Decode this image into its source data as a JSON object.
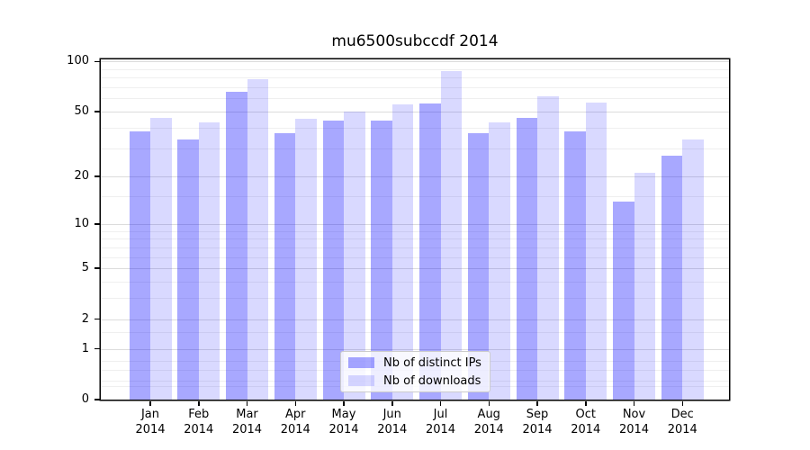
{
  "chart_data": {
    "type": "bar",
    "title": "mu6500subccdf 2014",
    "categories": [
      "Jan",
      "Feb",
      "Mar",
      "Apr",
      "May",
      "Jun",
      "Jul",
      "Aug",
      "Sep",
      "Oct",
      "Nov",
      "Dec"
    ],
    "category_year": "2014",
    "series": [
      {
        "name": "Nb of distinct IPs",
        "color": "rgba(0,0,255,0.34)",
        "values": [
          38,
          34,
          66,
          37,
          44,
          44,
          56,
          37,
          46,
          38,
          14,
          27
        ]
      },
      {
        "name": "Nb of downloads",
        "color": "rgba(0,0,255,0.15)",
        "values": [
          46,
          43,
          78,
          45,
          50,
          55,
          88,
          43,
          62,
          57,
          21,
          34
        ]
      }
    ],
    "y_axis": {
      "scale": "log1p",
      "tick_labels": [
        0,
        1,
        2,
        5,
        10,
        20,
        50,
        100
      ],
      "minor_gridlines": [
        0.2,
        0.3,
        0.5,
        0.7,
        1.5,
        3,
        4,
        6,
        7,
        8,
        9,
        15,
        30,
        40,
        60,
        70,
        80,
        90
      ],
      "ylim": [
        0,
        103
      ]
    },
    "legend": {
      "position": "lower center"
    },
    "grid": true
  }
}
